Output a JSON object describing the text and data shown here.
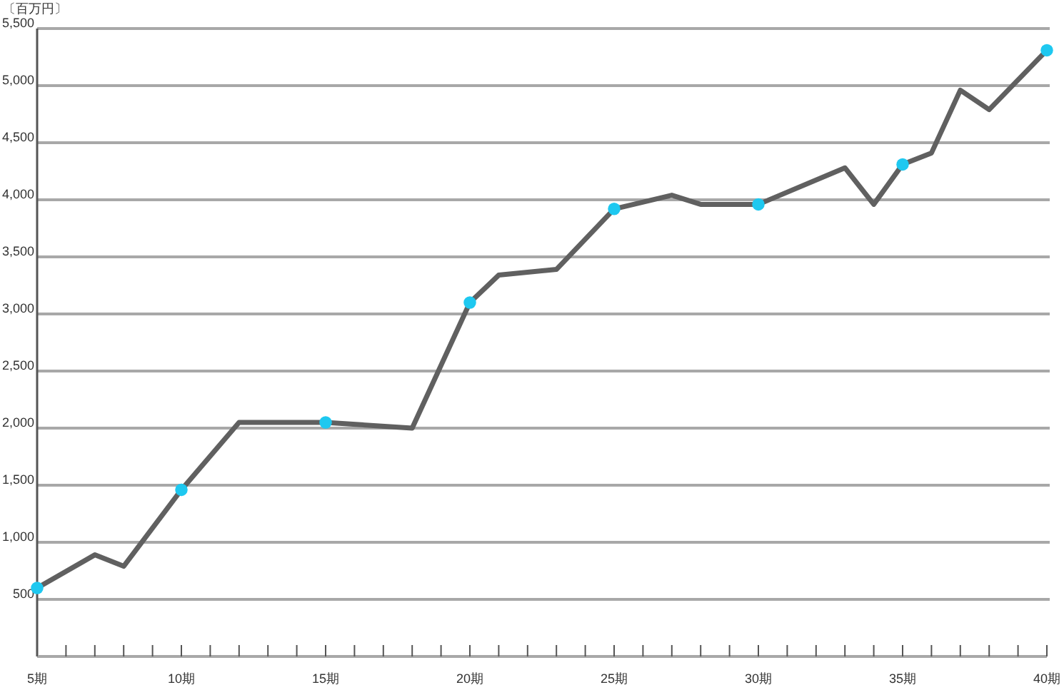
{
  "chart_data": {
    "type": "line",
    "ylabel": "〔百万円〕",
    "xlim": [
      5,
      40
    ],
    "xticks": [
      {
        "value": 5,
        "label": "5期"
      },
      {
        "value": 6,
        "label": null
      },
      {
        "value": 7,
        "label": null
      },
      {
        "value": 8,
        "label": null
      },
      {
        "value": 9,
        "label": null
      },
      {
        "value": 10,
        "label": "10期"
      },
      {
        "value": 11,
        "label": null
      },
      {
        "value": 12,
        "label": null
      },
      {
        "value": 13,
        "label": null
      },
      {
        "value": 14,
        "label": null
      },
      {
        "value": 15,
        "label": "15期"
      },
      {
        "value": 16,
        "label": null
      },
      {
        "value": 17,
        "label": null
      },
      {
        "value": 18,
        "label": null
      },
      {
        "value": 19,
        "label": null
      },
      {
        "value": 20,
        "label": "20期"
      },
      {
        "value": 21,
        "label": null
      },
      {
        "value": 22,
        "label": null
      },
      {
        "value": 23,
        "label": null
      },
      {
        "value": 24,
        "label": null
      },
      {
        "value": 25,
        "label": "25期"
      },
      {
        "value": 26,
        "label": null
      },
      {
        "value": 27,
        "label": null
      },
      {
        "value": 28,
        "label": null
      },
      {
        "value": 29,
        "label": null
      },
      {
        "value": 30,
        "label": "30期"
      },
      {
        "value": 31,
        "label": null
      },
      {
        "value": 32,
        "label": null
      },
      {
        "value": 33,
        "label": null
      },
      {
        "value": 34,
        "label": null
      },
      {
        "value": 35,
        "label": "35期"
      },
      {
        "value": 36,
        "label": null
      },
      {
        "value": 37,
        "label": null
      },
      {
        "value": 38,
        "label": null
      },
      {
        "value": 39,
        "label": null
      },
      {
        "value": 40,
        "label": "40期"
      }
    ],
    "ylim": [
      0,
      5500
    ],
    "yticks": [
      {
        "value": 500,
        "label": "500"
      },
      {
        "value": 1000,
        "label": "1,000"
      },
      {
        "value": 1500,
        "label": "1,500"
      },
      {
        "value": 2000,
        "label": "2,000"
      },
      {
        "value": 2500,
        "label": "2,500"
      },
      {
        "value": 3000,
        "label": "3,000"
      },
      {
        "value": 3500,
        "label": "3,500"
      },
      {
        "value": 4000,
        "label": "4,000"
      },
      {
        "value": 4500,
        "label": "4,500"
      },
      {
        "value": 5000,
        "label": "5,000"
      },
      {
        "value": 5500,
        "label": "5,500"
      }
    ],
    "grid": "y",
    "line_style": "solid",
    "series": [
      {
        "color": "#606060",
        "marker": "none",
        "x": [
          5,
          7,
          8,
          10,
          12,
          15,
          18,
          20,
          21,
          23,
          25,
          27,
          28,
          30,
          33,
          34,
          35,
          36,
          37,
          38,
          40
        ],
        "values": [
          600,
          890,
          790,
          1460,
          2050,
          2050,
          2000,
          3100,
          3340,
          3390,
          3920,
          4040,
          3960,
          3960,
          4280,
          3960,
          4310,
          4410,
          4960,
          4790,
          5310
        ]
      },
      {
        "type": "scatter",
        "color": "#1ec8f0",
        "marker": "circle",
        "x": [
          5,
          10,
          15,
          20,
          25,
          30,
          35,
          40
        ],
        "values": [
          600,
          1460,
          2050,
          3100,
          3920,
          3960,
          4310,
          5310
        ]
      }
    ]
  }
}
